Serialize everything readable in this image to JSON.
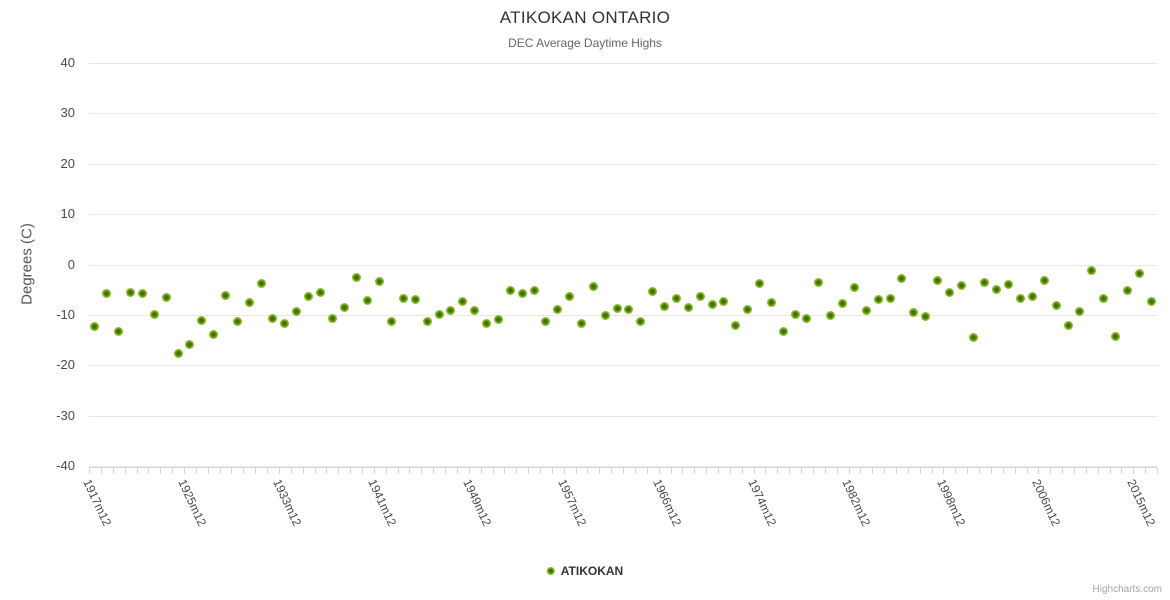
{
  "chart_data": {
    "type": "scatter",
    "title": "ATIKOKAN ONTARIO",
    "subtitle": "DEC Average Daytime Highs",
    "ylabel": "Degrees (C)",
    "ylim": [
      -40,
      40
    ],
    "ytick_interval": 10,
    "ytick_labels": [
      "40",
      "30",
      "20",
      "10",
      "0",
      "-10",
      "-20",
      "-30",
      "-40"
    ],
    "grid": "horizontal-only",
    "legend_position": "bottom-center",
    "x_tick_labels": [
      {
        "index": 0,
        "label": "1917m12"
      },
      {
        "index": 8,
        "label": "1925m12"
      },
      {
        "index": 16,
        "label": "1933m12"
      },
      {
        "index": 24,
        "label": "1941m12"
      },
      {
        "index": 32,
        "label": "1949m12"
      },
      {
        "index": 40,
        "label": "1957m12"
      },
      {
        "index": 48,
        "label": "1966m12"
      },
      {
        "index": 56,
        "label": "1974m12"
      },
      {
        "index": 64,
        "label": "1982m12"
      },
      {
        "index": 72,
        "label": "1998m12"
      },
      {
        "index": 80,
        "label": "2006m12"
      },
      {
        "index": 88,
        "label": "2015m12"
      }
    ],
    "series": [
      {
        "name": "ATIKOKAN",
        "values": [
          -12.3,
          -5.8,
          -13.3,
          -5.5,
          -5.7,
          -9.9,
          -6.5,
          -17.7,
          -15.8,
          -11.2,
          -13.9,
          -6.1,
          -11.3,
          -7.6,
          -3.8,
          -10.8,
          -11.7,
          -9.4,
          -6.3,
          -5.6,
          -10.7,
          -8.5,
          -2.5,
          -7.1,
          -3.3,
          -11.3,
          -6.8,
          -6.9,
          -11.3,
          -10.0,
          -9.2,
          -7.3,
          -9.2,
          -11.8,
          -11.0,
          -5.2,
          -5.7,
          -5.1,
          -11.3,
          -9.0,
          -6.3,
          -11.7,
          -4.3,
          -10.2,
          -8.8,
          -8.9,
          -11.3,
          -5.3,
          -8.4,
          -6.7,
          -8.5,
          -6.3,
          -8.0,
          -7.4,
          -12.1,
          -8.9,
          -3.8,
          -7.5,
          -13.2,
          -10.0,
          -10.8,
          -3.6,
          -10.2,
          -7.8,
          -4.5,
          -9.1,
          -7.0,
          -6.8,
          -2.8,
          -9.6,
          -10.3,
          -3.1,
          -5.5,
          -4.1,
          -14.4,
          -3.6,
          -5.0,
          -3.9,
          -6.8,
          -6.4,
          -3.1,
          -8.1,
          -12.1,
          -9.4,
          -1.1,
          -6.8,
          -14.2,
          -5.1,
          -1.8,
          -7.4
        ]
      }
    ]
  },
  "credits": {
    "label": "Highcharts.com"
  },
  "colors": {
    "title": "#333333",
    "subtitle": "#666666",
    "axis_title": "#555555",
    "axis_label": "#4a4a4a",
    "grid": "#e6e6e6",
    "axis": "#ccd6eb",
    "legend_text": "#333333",
    "credits_text": "#a5a5af",
    "marker_outer": "#8abb25",
    "marker_inner": "#3e7004"
  }
}
